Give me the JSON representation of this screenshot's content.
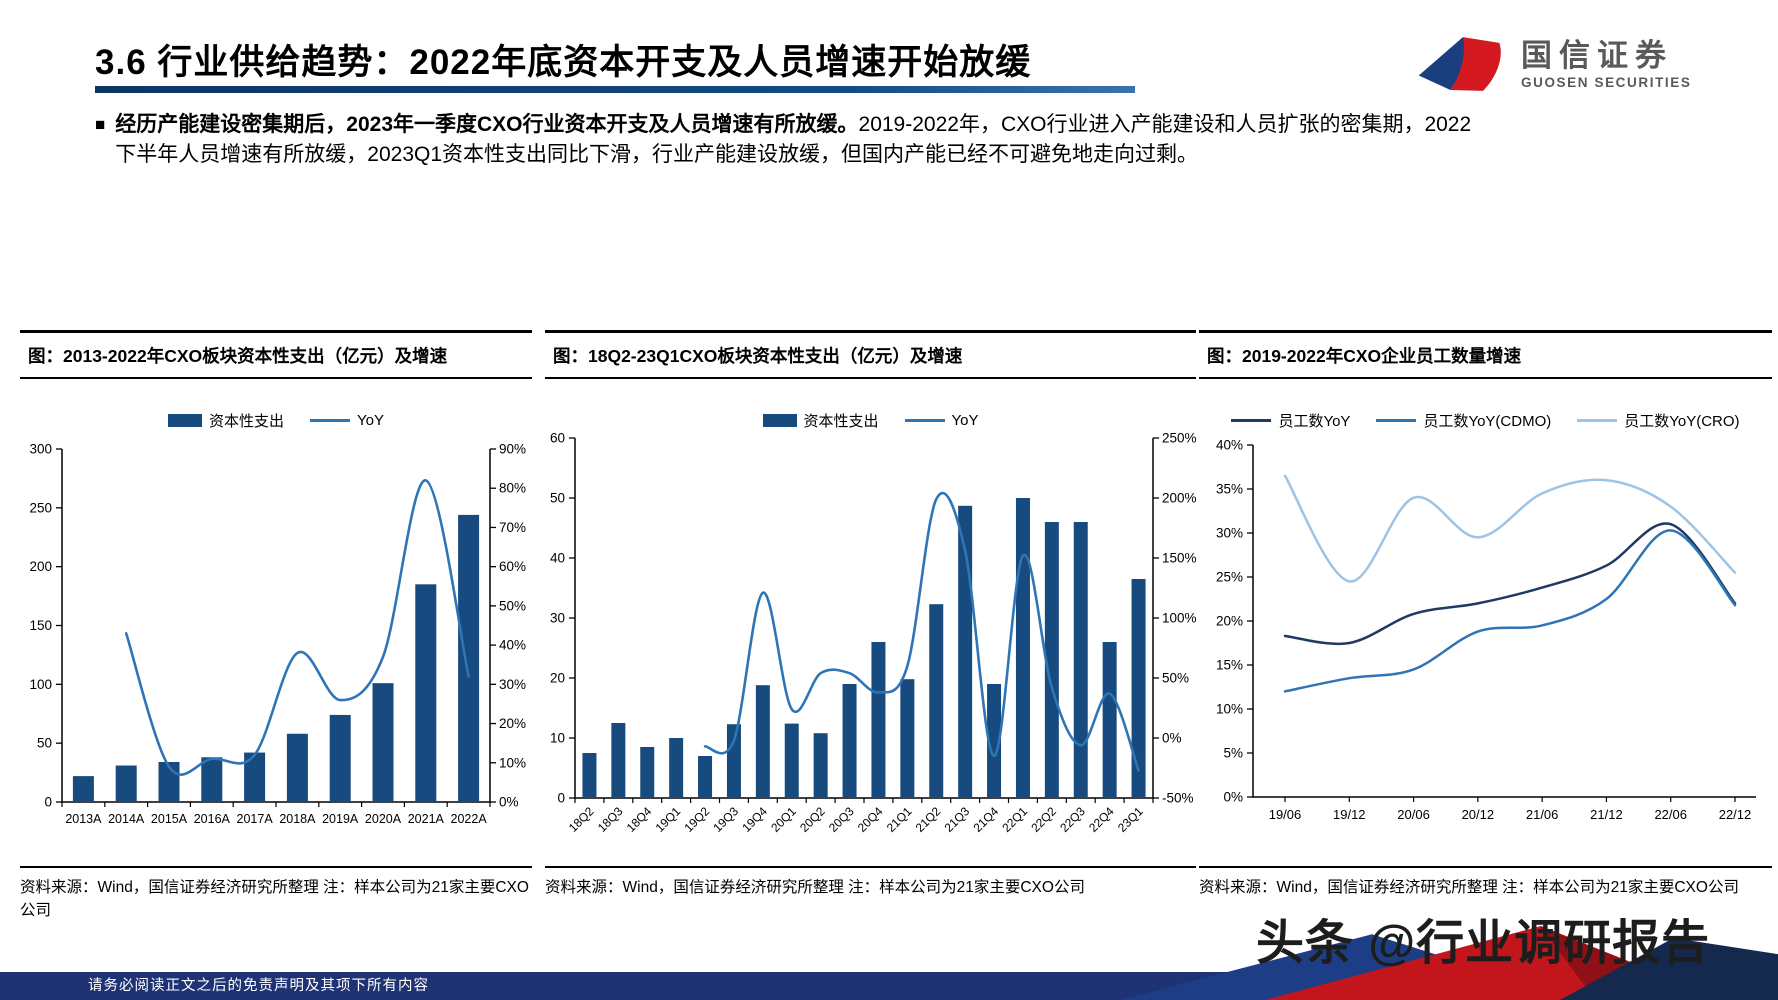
{
  "header": {
    "title": "3.6 行业供给趋势：2022年底资本开支及人员增速开始放缓",
    "logo_cn": "国信证券",
    "logo_en": "GUOSEN SECURITIES"
  },
  "bullet": {
    "marker": "■",
    "bold": "经历产能建设密集期后，2023年一季度CXO行业资本开支及人员增速有所放缓。",
    "normal": "2019-2022年，CXO行业进入产能建设和人员扩张的密集期，2022下半年人员增速有所放缓，2023Q1资本性支出同比下滑，行业产能建设放缓，但国内产能已经不可避免地走向过剩。"
  },
  "panels": [
    {
      "title": "图：2013-2022年CXO板块资本性支出（亿元）及增速",
      "source": "资料来源：Wind，国信证券经济研究所整理 注：样本公司为21家主要CXO公司"
    },
    {
      "title": "图：18Q2-23Q1CXO板块资本性支出（亿元）及增速",
      "source": "资料来源：Wind，国信证券经济研究所整理 注：样本公司为21家主要CXO公司"
    },
    {
      "title": "图：2019-2022年CXO企业员工数量增速",
      "source": "资料来源：Wind，国信证券经济研究所整理 注：样本公司为21家主要CXO公司"
    }
  ],
  "footer": {
    "disclaimer": "请务必阅读正文之后的免责声明及其项下所有内容"
  },
  "watermark": "头条 @行业调研报告",
  "chart_data": [
    {
      "type": "bar",
      "title": "图：2013-2022年CXO板块资本性支出（亿元）及增速",
      "categories": [
        "2013A",
        "2014A",
        "2015A",
        "2016A",
        "2017A",
        "2018A",
        "2019A",
        "2020A",
        "2021A",
        "2022A"
      ],
      "series": [
        {
          "name": "资本性支出",
          "type": "bar",
          "axis": "left",
          "color": "#174A7E",
          "values": [
            22,
            31,
            34,
            38,
            42,
            58,
            74,
            101,
            185,
            244
          ]
        },
        {
          "name": "YoY",
          "type": "line",
          "axis": "right",
          "color": "#2E75B6",
          "values": [
            null,
            43,
            9,
            11,
            12,
            38,
            26,
            37,
            82,
            32
          ]
        }
      ],
      "left_axis": {
        "min": 0,
        "max": 300,
        "step": 50,
        "percent": false
      },
      "right_axis": {
        "min": 0,
        "max": 90,
        "step": 10,
        "percent": true
      },
      "legend_position": "top",
      "grid": false
    },
    {
      "type": "bar",
      "title": "图：18Q2-23Q1CXO板块资本性支出（亿元）及增速",
      "categories": [
        "18Q2",
        "18Q3",
        "18Q4",
        "19Q1",
        "19Q2",
        "19Q3",
        "19Q4",
        "20Q1",
        "20Q2",
        "20Q3",
        "20Q4",
        "21Q1",
        "21Q2",
        "21Q3",
        "21Q4",
        "22Q1",
        "22Q2",
        "22Q3",
        "22Q4",
        "23Q1"
      ],
      "series": [
        {
          "name": "资本性支出",
          "type": "bar",
          "axis": "left",
          "color": "#174A7E",
          "values": [
            7.5,
            12.5,
            8.5,
            10,
            7,
            12.3,
            18.8,
            12.4,
            10.8,
            19,
            26,
            19.8,
            32.3,
            48.7,
            19,
            50,
            46,
            46,
            26,
            36.5
          ]
        },
        {
          "name": "YoY",
          "type": "line",
          "axis": "right",
          "color": "#2E75B6",
          "values": [
            null,
            null,
            null,
            null,
            -7,
            -2,
            121,
            24,
            54,
            54,
            38,
            60,
            199,
            156,
            -15,
            152,
            42,
            -6,
            37,
            -27
          ]
        }
      ],
      "left_axis": {
        "min": 0,
        "max": 60,
        "step": 10,
        "percent": false
      },
      "right_axis": {
        "min": -50,
        "max": 250,
        "step": 50,
        "percent": true
      },
      "legend_position": "top",
      "grid": false
    },
    {
      "type": "line",
      "title": "图：2019-2022年CXO企业员工数量增速",
      "x_labels": [
        "19/06",
        "19/12",
        "20/06",
        "20/12",
        "21/06",
        "21/12",
        "22/06",
        "22/12"
      ],
      "series": [
        {
          "name": "员工数YoY",
          "color": "#1F3864",
          "values": [
            18.3,
            17.5,
            20.8,
            22.0,
            23.8,
            26.3,
            31.0,
            22.0
          ]
        },
        {
          "name": "员工数YoY(CDMO)",
          "color": "#2E75B6",
          "values": [
            12.0,
            13.5,
            14.5,
            18.8,
            19.5,
            22.5,
            30.3,
            21.8
          ]
        },
        {
          "name": "员工数YoY(CRO)",
          "color": "#9DC3E6",
          "values": [
            36.5,
            24.5,
            34.0,
            29.5,
            34.5,
            36.0,
            33.0,
            25.5
          ]
        }
      ],
      "y_axis": {
        "min": 0,
        "max": 40,
        "step": 5,
        "percent": true
      },
      "legend_position": "top",
      "grid": false
    }
  ]
}
